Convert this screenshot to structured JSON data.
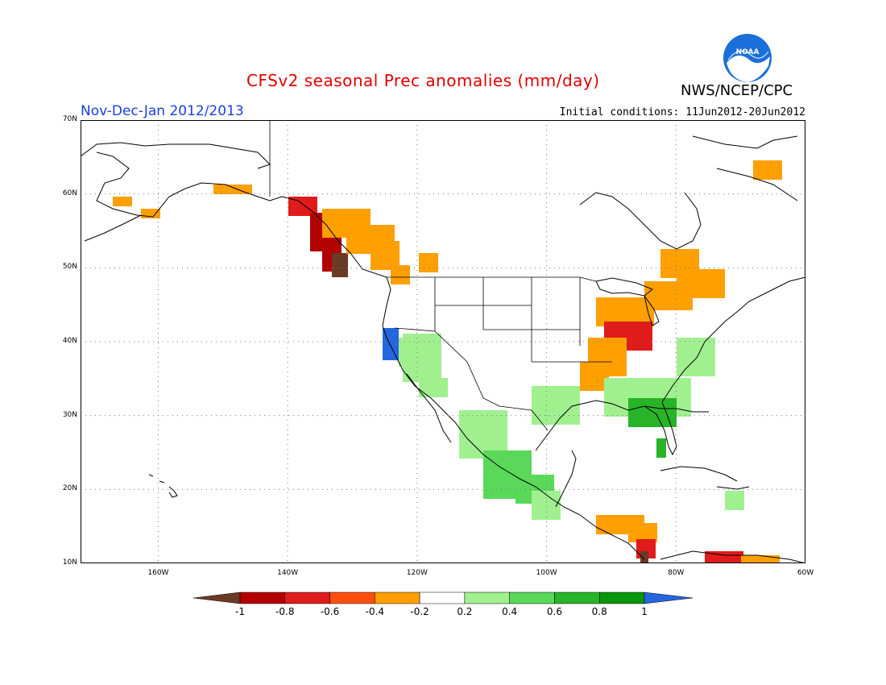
{
  "header": {
    "title": "CFSv2 seasonal Prec anomalies (mm/day)",
    "period": "Nov-Dec-Jan 2012/2013",
    "initial_conditions": "Initial conditions: 11Jun2012-20Jun2012",
    "agency": "NWS/NCEP/CPC",
    "logo_text": "NOAA"
  },
  "map": {
    "lon_range": [
      -172,
      -60
    ],
    "lat_range": [
      10,
      70
    ],
    "lat_labels": [
      "70N",
      "60N",
      "50N",
      "40N",
      "30N",
      "20N",
      "10N"
    ],
    "lon_labels": [
      "160W",
      "140W",
      "120W",
      "100W",
      "80W",
      "60W"
    ],
    "gridlines": "dotted"
  },
  "colorbar": {
    "labels": [
      "-1",
      "-0.8",
      "-0.6",
      "-0.4",
      "-0.2",
      "0.2",
      "0.4",
      "0.6",
      "0.8",
      "1"
    ],
    "colors": [
      "#6b3a26",
      "#b30000",
      "#e01b1b",
      "#ff4f0f",
      "#ff9f00",
      "#ffffff",
      "#a0f090",
      "#5ad85a",
      "#28b428",
      "#0a960a",
      "#2466e0"
    ]
  },
  "colors": {
    "title": "#e00000",
    "period": "#1a3fd9",
    "logo_blue": "#1a6fd9"
  }
}
